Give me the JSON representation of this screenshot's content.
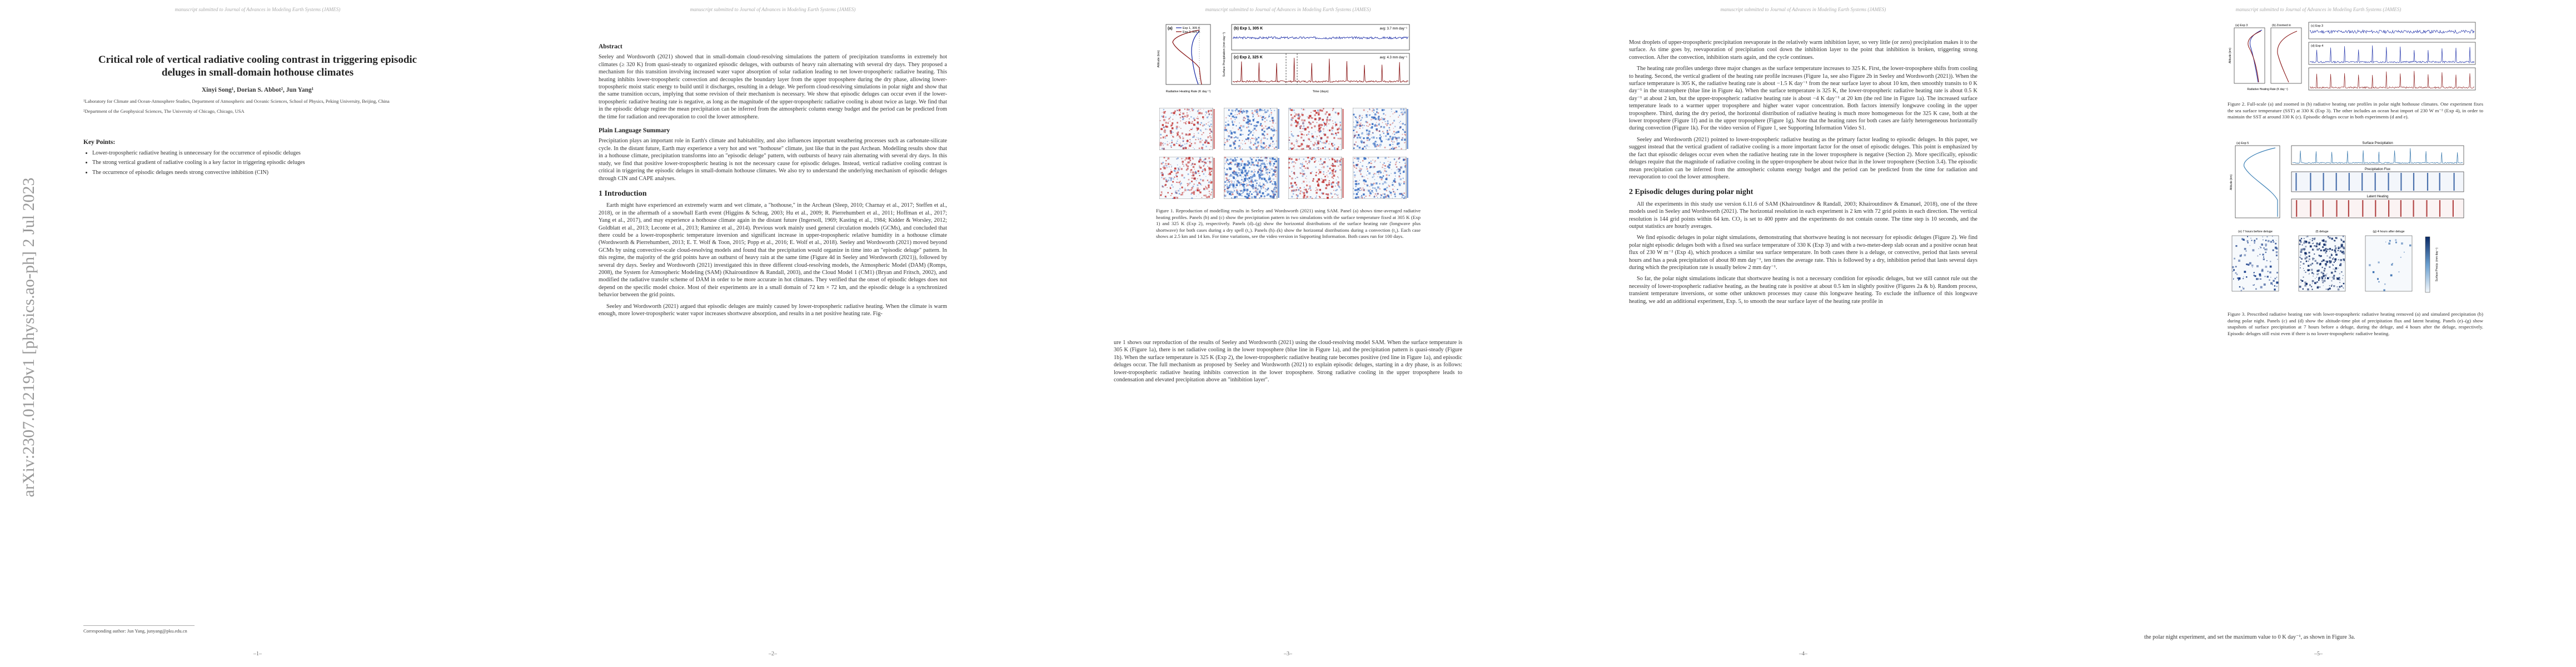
{
  "journal_header": "manuscript submitted to Journal of Advances in Modeling Earth Systems (JAMES)",
  "arxiv_stamp": "arXiv:2307.01219v1  [physics.ao-ph]  2 Jul 2023",
  "page_numbers": [
    "–1–",
    "–2–",
    "–3–",
    "–4–",
    "–5–"
  ],
  "page1": {
    "title": "Critical role of vertical radiative cooling contrast in triggering episodic deluges in small-domain hothouse climates",
    "authors": "Xinyi Song¹, Dorian S. Abbot², Jun Yang¹",
    "affiliations": [
      "¹Laboratory for Climate and Ocean-Atmosphere Studies, Department of Atmospheric and Oceanic Sciences, School of Physics, Peking University, Beijing, China",
      "²Department of the Geophysical Sciences, The University of Chicago, Chicago, USA"
    ],
    "key_points_heading": "Key Points:",
    "key_points": [
      "Lower-tropospheric radiative heating is unnecessary for the occurrence of episodic deluges",
      "The strong vertical gradient of radiative cooling is a key factor in triggering episodic deluges",
      "The occurrence of episodic deluges needs strong convective inhibition (CIN)"
    ],
    "corresponding": "Corresponding author: Jun Yang, junyang@pku.edu.cn"
  },
  "page2": {
    "abstract_heading": "Abstract",
    "abstract": "Seeley and Wordsworth (2021) showed that in small-domain cloud-resolving simulations the pattern of precipitation transforms in extremely hot climates (≥ 320 K) from quasi-steady to organized episodic deluges, with outbursts of heavy rain alternating with several dry days. They proposed a mechanism for this transition involving increased water vapor absorption of solar radiation leading to net lower-tropospheric radiative heating. This heating inhibits lower-tropospheric convection and decouples the boundary layer from the upper troposphere during the dry phase, allowing lower-tropospheric moist static energy to build until it discharges, resulting in a deluge. We perform cloud-resolving simulations in polar night and show that the same transition occurs, implying that some revision of their mechanism is necessary. We show that episodic deluges can occur even if the lower-tropospheric radiative heating rate is negative, as long as the magnitude of the upper-tropospheric radiative cooling is about twice as large. We find that in the episodic deluge regime the mean precipitation can be inferred from the atmospheric column energy budget and the period can be predicted from the time for radiation and reevaporation to cool the lower atmosphere.",
    "pls_heading": "Plain Language Summary",
    "pls": "Precipitation plays an important role in Earth's climate and habitability, and also influences important weathering processes such as carbonate-silicate cycle. In the distant future, Earth may experience a very hot and wet \"hothouse\" climate, just like that in the past Archean. Modelling results show that in a hothouse climate, precipitation transforms into an \"episodic deluge\" pattern, with outbursts of heavy rain alternating with several dry days. In this study, we find that positive lower-tropospheric heating is not the necessary cause for episodic deluges. Instead, vertical radiative cooling contrast is critical in triggering the episodic deluges in small-domain hothouse climates. We also try to understand the underlying mechanism of episodic deluges through CIN and CAPE analyses.",
    "intro_heading": "1 Introduction",
    "intro_p1": "Earth might have experienced an extremely warm and wet climate, a \"hothouse,\" in the Archean (Sleep, 2010; Charnay et al., 2017; Steffen et al., 2018), or in the aftermath of a snowball Earth event (Higgins & Schrag, 2003; Hu et al., 2009; R. Pierrehumbert et al., 2011; Hoffman et al., 2017; Yang et al., 2017), and may experience a hothouse climate again in the distant future (Ingersoll, 1969; Kasting et al., 1984; Kidder & Worsley, 2012; Goldblatt et al., 2013; Leconte et al., 2013; Ramirez et al., 2014). Previous work mainly used general circulation models (GCMs), and concluded that there could be a lower-tropospheric temperature inversion and significant increase in upper-tropospheric relative humidity in a hothouse climate (Wordsworth & Pierrehumbert, 2013; E. T. Wolf & Toon, 2015; Popp et al., 2016; E. Wolf et al., 2018). Seeley and Wordsworth (2021) moved beyond GCMs by using convective-scale cloud-resolving models and found that the precipitation would organize in time into an \"episodic deluge\" pattern. In this regime, the majority of the grid points have an outburst of heavy rain at the same time (Figure 4d in Seeley and Wordsworth (2021)), followed by several dry days. Seeley and Wordsworth (2021) investigated this in three different cloud-resolving models, the Atmospheric Model (DAM) (Romps, 2008), the System for Atmospheric Modeling (SAM) (Khairoutdinov & Randall, 2003), and the Cloud Model 1 (CM1) (Bryan and Fritsch, 2002), and modified the radiative transfer scheme of DAM in order to be more accurate in hot climates. They verified that the onset of episodic deluges does not depend on the specific model choice. Most of their experiments are in a small domain of 72 km × 72 km, and the episodic deluge is a synchronized behavior between the grid points.",
    "intro_p2": "Seeley and Wordsworth (2021) argued that episodic deluges are mainly caused by lower-tropospheric radiative heating. When the climate is warm enough, more lower-tropospheric water vapor increases shortwave absorption, and results in a net positive heating rate. Fig-"
  },
  "page3": {
    "panel_a_label": "(a)",
    "panel_b_label": "(b) Exp 1, 305 K",
    "panel_c_label": "(c) Exp 2, 325 K",
    "avg_b": "avg: 3.7 mm day⁻¹",
    "avg_c": "avg: 4.3 mm day⁻¹",
    "legend_exp1": "Exp 1, 305 K",
    "legend_exp2": "Exp 2, 325 K",
    "xlabel_a": "Radiative Heating Rate (K day⁻¹)",
    "ylabel_a": "Altitude (km)",
    "ylabel_bc": "Surface Precipitation (mm day⁻¹)",
    "xlabel_bc": "Time (days)",
    "caption": "Figure 1. Reproduction of modelling results in Seeley and Wordsworth (2021) using SAM. Panel (a) shows time-averaged radiative heating profiles. Panels (b) and (c) show the precipitation pattern in two simulations with the surface temperature fixed at 305 K (Exp 1) and 325 K (Exp 2), respectively. Panels (d)–(g) show the horizontal distributions of the surface heating rate (longwave plus shortwave) for both cases during a dry spell (t₁). Panels (h)–(k) show the horizontal distributions during a convection (t₂). Each case shows at 2.5 km and 14 km. For time variations, see the video version in Supporting Information. Both cases run for 100 days.",
    "body_p1": "ure 1 shows our reproduction of the results of Seeley and Wordsworth (2021) using the cloud-resolving model SAM. When the surface temperature is 305 K (Figure 1a), there is net radiative cooling in the lower troposphere (blue line in Figure 1a), and the precipitation pattern is quasi-steady (Figure 1b). When the surface temperature is 325 K (Exp 2), the lower-tropospheric radiative heating rate becomes positive (red line in Figure 1a), and episodic deluges occur. The full mechanism as proposed by Seeley and Wordsworth (2021) to explain episodic deluges, starting in a dry phase, is as follows: lower-tropospheric radiative heating inhibits convection in the lower troposphere. Strong radiative cooling in the upper troposphere leads to condensation and elevated precipitation above an \"inhibition layer\"."
  },
  "page4": {
    "p1": "Most droplets of upper-tropospheric precipitation reevaporate in the relatively warm inhibition layer, so very little (or zero) precipitation makes it to the surface. As time goes by, reevaporation of precipitation cool down the inhibition layer to the point that inhibition is broken, triggering strong convection. After the convection, inhibition starts again, and the cycle continues.",
    "p2": "The heating rate profiles undergo three major changes as the surface temperature increases to 325 K. First, the lower-troposphere shifts from cooling to heating. Second, the vertical gradient of the heating rate profile increases (Figure 1a, see also Figure 2b in Seeley and Wordsworth (2021)). When the surface temperature is 305 K, the radiative heating rate is about −1.5 K day⁻¹ from the near surface layer to about 10 km, then smoothly transits to 0 K day⁻¹ in the stratosphere (blue line in Figure 4a). When the surface temperature is 325 K, the lower-tropospheric radiative heating rate is about 0.5 K day⁻¹ at about 2 km, but the upper-tropospheric radiative heating rate is about −4 K day⁻¹ at 20 km (the red line in Figure 1a). The increased surface temperature leads to a warmer upper troposphere and higher water vapor concentration. Both factors intensify longwave cooling in the upper troposphere. Third, during the dry period, the horizontal distribution of radiative heating is much more homogeneous for the 325 K case, both at the lower troposphere (Figure 1f) and in the upper troposphere (Figure 1g). Note that the heating rates for both cases are fairly heterogeneous horizontally during convection (Figure 1k). For the video version of Figure 1, see Supporting Information Video S1.",
    "p3": "Seeley and Wordsworth (2021) pointed to lower-tropospheric radiative heating as the primary factor leading to episodic deluges. In this paper, we suggest instead that the vertical gradient of radiative cooling is a more important factor for the onset of episodic deluges. This point is emphasized by the fact that episodic deluges occur even when the radiative heating rate in the lower troposphere is negative (Section 2). More specifically, episodic deluges require that the magnitude of radiative cooling in the upper-troposphere be about twice that in the lower troposphere (Section 3.4). The episodic mean precipitation can be inferred from the atmospheric column energy budget and the period can be predicted from the time for radiation and reevaporation to cool the lower atmosphere.",
    "sec2_heading": "2 Episodic deluges during polar night",
    "p4": "All the experiments in this study use version 6.11.6 of SAM (Khairoutdinov & Randall, 2003; Khairoutdinov & Emanuel, 2018), one of the three models used in Seeley and Wordsworth (2021). The horizontal resolution in each experiment is 2 km with 72 grid points in each direction. The vertical resolution is 144 grid points within 64 km. CO₂ is set to 400 ppmv and the experiments do not contain ozone. The time step is 10 seconds, and the output statistics are hourly averages.",
    "p5": "We find episodic deluges in polar night simulations, demonstrating that shortwave heating is not necessary for episodic deluges (Figure 2). We find polar night episodic deluges both with a fixed sea surface temperature of 330 K (Exp 3) and with a two-meter-deep slab ocean and a positive ocean heat flux of 230 W m⁻² (Exp 4), which produces a similar sea surface temperature. In both cases there is a deluge, or convective, period that lasts several hours and has a peak precipitation of about 80 mm day⁻¹, ten times the average rate. This is followed by a dry, inhibition period that lasts several days during which the precipitation rate is usually below 2 mm day⁻¹.",
    "p6": "So far, the polar night simulations indicate that shortwave heating is not a necessary condition for episodic deluges, but we still cannot rule out the necessity of lower-tropospheric radiative heating, as the heating rate is positive at about 0.5 km in slightly positive (Figures 2a & b). Random process, transient temperature inversions, or some other unknown processes may cause this longwave heating. To exclude the influence of this longwave heating, we add an additional experiment, Exp. 5, to smooth the near surface layer of the heating rate profile in"
  },
  "page5": {
    "fig2_label_a": "(a) Exp 3",
    "fig2_label_b": "(b) Zoomed in",
    "fig2_label_c": "(c) Exp 3",
    "fig2_label_d": "(d) Exp 4",
    "fig2_ylabel": "Altitude (km)",
    "fig2_xlabel": "Radiative Heating Rate (K day⁻¹)",
    "fig2_caption": "Figure 2. Full-scale (a) and zoomed in (b) radiative heating rate profiles in polar night hothouse climates. One experiment fixes the sea surface temperature (SST) at 330 K (Exp 3). The other includes an ocean heat import of 230 W m⁻² (Exp 4), in order to maintain the SST at around 330 K (c). Episodic deluges occur in both experiments (d and e).",
    "fig3_label_a": "(a) Exp 5",
    "fig3_title_b": "Surface Precipitation",
    "fig3_title_c": "Precipitation Flux",
    "fig3_title_d": "Latent Heating",
    "fig3_title_e": "(e) 7 hours before deluge",
    "fig3_title_f": "(f) deluge",
    "fig3_title_g": "(g) 4 hours after deluge",
    "fig3_colorbar": "Surface Precip. (mm day⁻¹)",
    "fig3_caption": "Figure 3. Prescribed radiative heating rate with lower-tropospheric radiative heating removed (a) and simulated precipitation (b) during polar night. Panels (c) and (d) show the altitude-time plot of precipitation flux and latent heating. Panels (e)–(g) show snapshots of surface precipitation at 7 hours before a deluge, during the deluge, and 4 hours after the deluge, respectively. Episodic deluges still exist even if there is no lower-tropospheric radiative heating.",
    "tail": "the polar night experiment, and set the maximum value to 0 K day⁻¹, as shown in Figure 3a."
  },
  "colors": {
    "exp1_blue": "#2233aa",
    "exp2_red": "#8b1a1a",
    "neutral": "#333333"
  }
}
